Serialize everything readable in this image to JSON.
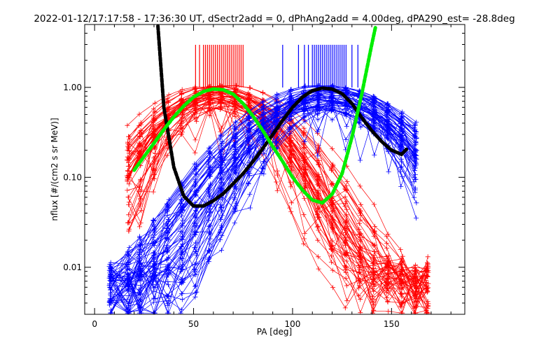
{
  "chart_data": {
    "type": "line",
    "title": "2022-01-12/17:17:58 - 17:36:30 UT, dSectr2add = 0, dPhAng2add = 4.00deg, dPA290_est= -28.8deg",
    "xlabel": "PA [deg]",
    "ylabel": "nflux [#/(cm2 s sr MeV)]",
    "xlim": [
      -5,
      187
    ],
    "ylim": [
      0.003,
      5.0
    ],
    "yscale": "log",
    "xticks": [
      0,
      50,
      100,
      150
    ],
    "xtick_labels": [
      "0",
      "50",
      "100",
      "150"
    ],
    "yticks": [
      0.01,
      0.1,
      1.0
    ],
    "ytick_labels": [
      "0.01",
      "0.10",
      "1.00"
    ],
    "colors": {
      "red": "#ff0000",
      "blue": "#0000ff",
      "green": "#00ee00",
      "black": "#000000"
    },
    "red_series": {
      "name": "red sector distributions",
      "count": 50,
      "x": [
        17,
        23,
        30,
        37,
        44,
        51,
        58,
        64,
        71,
        78,
        85,
        92,
        99,
        106,
        113,
        120,
        127,
        134,
        141,
        148,
        155,
        162,
        168
      ],
      "peak_x": 62,
      "width": 23,
      "floor": 0.0045
    },
    "blue_series": {
      "name": "blue sector distributions",
      "count": 60,
      "x": [
        8,
        17,
        23,
        30,
        37,
        44,
        51,
        58,
        64,
        71,
        78,
        85,
        92,
        99,
        106,
        113,
        120,
        127,
        134,
        141,
        148,
        155,
        162
      ],
      "peak_x": 118,
      "width": 26,
      "floor": 0.004
    },
    "black_fit": {
      "name": "black fit curve",
      "x": [
        32,
        35,
        40,
        45,
        50,
        55,
        60,
        65,
        70,
        75,
        80,
        85,
        90,
        95,
        100,
        105,
        110,
        115,
        120,
        125,
        130,
        135,
        140,
        145,
        150,
        155,
        158
      ],
      "y": [
        4.8,
        0.6,
        0.13,
        0.062,
        0.048,
        0.048,
        0.055,
        0.066,
        0.085,
        0.11,
        0.15,
        0.21,
        0.3,
        0.43,
        0.6,
        0.78,
        0.92,
        0.98,
        0.96,
        0.85,
        0.66,
        0.46,
        0.33,
        0.25,
        0.2,
        0.18,
        0.21
      ]
    },
    "green_fit": {
      "name": "green fit curve",
      "x": [
        20,
        25,
        30,
        35,
        40,
        45,
        50,
        55,
        60,
        65,
        70,
        75,
        80,
        85,
        90,
        95,
        100,
        105,
        110,
        115,
        120,
        125,
        130,
        135,
        140,
        142
      ],
      "y": [
        0.12,
        0.17,
        0.24,
        0.34,
        0.47,
        0.62,
        0.78,
        0.9,
        0.96,
        0.94,
        0.84,
        0.66,
        0.48,
        0.33,
        0.22,
        0.15,
        0.1,
        0.072,
        0.056,
        0.052,
        0.065,
        0.11,
        0.28,
        0.85,
        3.0,
        4.8
      ]
    },
    "red_markers_x": [
      51,
      53,
      55,
      56,
      57,
      58,
      59,
      60,
      61,
      62,
      63,
      64,
      65,
      66,
      67,
      68,
      69,
      70,
      71,
      72,
      73,
      74,
      75
    ],
    "blue_markers_x": [
      95,
      103,
      106,
      108,
      110,
      111,
      112,
      113,
      114,
      115,
      116,
      117,
      118,
      119,
      120,
      121,
      122,
      123,
      124,
      125,
      126,
      127,
      130,
      133
    ]
  }
}
